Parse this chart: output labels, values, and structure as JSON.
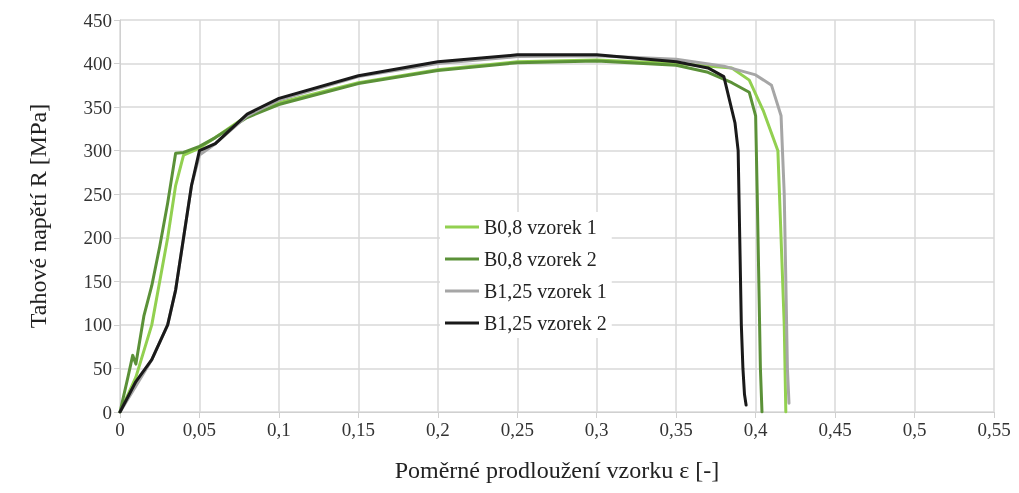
{
  "chart_data": {
    "type": "line",
    "xlabel": "Poměrné prodloužení vzorku ε [-]",
    "ylabel": "Tahové napětí R [MPa]",
    "xlim": [
      0,
      0.55
    ],
    "xticks": [
      0,
      {
        "value": 0.05,
        "label": "0,05"
      },
      {
        "value": 0.1,
        "label": "0,1"
      },
      {
        "value": 0.15,
        "label": "0,15"
      },
      {
        "value": 0.2,
        "label": "0,2"
      },
      {
        "value": 0.25,
        "label": "0,25"
      },
      {
        "value": 0.3,
        "label": "0,3"
      },
      {
        "value": 0.35,
        "label": "0,35"
      },
      {
        "value": 0.4,
        "label": "0,4"
      },
      {
        "value": 0.45,
        "label": "0,45"
      },
      {
        "value": 0.5,
        "label": "0,5"
      },
      {
        "value": 0.55,
        "label": "0,55"
      }
    ],
    "ylim": [
      0,
      450
    ],
    "yticks": [
      0,
      50,
      100,
      150,
      200,
      250,
      300,
      350,
      400,
      450
    ],
    "grid": true,
    "legend": "center",
    "marker": "none",
    "line_style": "solid",
    "series": [
      {
        "name": "B0,8 vzorek 1",
        "color": "#92d050",
        "x": [
          0,
          0.01,
          0.02,
          0.03,
          0.035,
          0.04,
          0.05,
          0.06,
          0.08,
          0.1,
          0.15,
          0.2,
          0.25,
          0.3,
          0.35,
          0.385,
          0.396,
          0.405,
          0.414,
          0.416,
          0.418,
          0.419
        ],
        "values": [
          0,
          40,
          100,
          200,
          260,
          295,
          303,
          315,
          340,
          355,
          378,
          393,
          402,
          404,
          400,
          395,
          381,
          345,
          300,
          200,
          100,
          0
        ]
      },
      {
        "name": "B0,8 vzorek 2",
        "color": "#5b9138",
        "x": [
          0,
          0.005,
          0.008,
          0.01,
          0.015,
          0.02,
          0.025,
          0.03,
          0.035,
          0.04,
          0.05,
          0.06,
          0.08,
          0.1,
          0.15,
          0.2,
          0.25,
          0.3,
          0.35,
          0.37,
          0.385,
          0.396,
          0.4,
          0.401,
          0.402,
          0.403,
          0.404
        ],
        "values": [
          0,
          40,
          65,
          55,
          110,
          145,
          190,
          240,
          297,
          298,
          305,
          315,
          338,
          353,
          377,
          392,
          401,
          403,
          398,
          390,
          378,
          367,
          340,
          250,
          150,
          50,
          0
        ]
      },
      {
        "name": "B1,25 vzorek 1",
        "color": "#a6a6a6",
        "x": [
          0,
          0.01,
          0.02,
          0.03,
          0.035,
          0.04,
          0.045,
          0.05,
          0.06,
          0.08,
          0.1,
          0.15,
          0.2,
          0.25,
          0.3,
          0.35,
          0.38,
          0.4,
          0.41,
          0.416,
          0.418,
          0.419,
          0.42,
          0.421
        ],
        "values": [
          0,
          30,
          60,
          100,
          140,
          200,
          260,
          295,
          308,
          340,
          358,
          385,
          400,
          408,
          409,
          405,
          397,
          387,
          375,
          340,
          250,
          150,
          50,
          10
        ]
      },
      {
        "name": "B1,25 vzorek 2",
        "color": "#1a1a1a",
        "x": [
          0,
          0.01,
          0.02,
          0.03,
          0.035,
          0.04,
          0.045,
          0.05,
          0.06,
          0.08,
          0.1,
          0.15,
          0.2,
          0.25,
          0.3,
          0.35,
          0.37,
          0.38,
          0.387,
          0.389,
          0.39,
          0.391,
          0.392,
          0.393,
          0.394
        ],
        "values": [
          0,
          35,
          60,
          100,
          140,
          200,
          260,
          300,
          308,
          342,
          360,
          386,
          402,
          410,
          410,
          402,
          395,
          385,
          332,
          300,
          200,
          100,
          50,
          20,
          8
        ]
      }
    ]
  }
}
